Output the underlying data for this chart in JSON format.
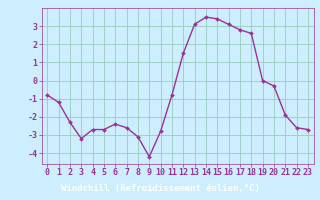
{
  "x": [
    0,
    1,
    2,
    3,
    4,
    5,
    6,
    7,
    8,
    9,
    10,
    11,
    12,
    13,
    14,
    15,
    16,
    17,
    18,
    19,
    20,
    21,
    22,
    23
  ],
  "y": [
    -0.8,
    -1.2,
    -2.3,
    -3.2,
    -2.7,
    -2.7,
    -2.4,
    -2.6,
    -3.1,
    -4.2,
    -2.8,
    -0.8,
    1.5,
    3.1,
    3.5,
    3.4,
    3.1,
    2.8,
    2.6,
    0.0,
    -0.3,
    -1.9,
    -2.6,
    -2.7
  ],
  "line_color": "#993399",
  "marker": "D",
  "markersize": 2,
  "linewidth": 1.0,
  "bg_color": "#cceeff",
  "plot_bg_color": "#cceeff",
  "grid_color": "#99ccbb",
  "tick_color": "#993399",
  "label_color": "#993399",
  "bottom_bar_color": "#9933aa",
  "xlabel": "Windchill (Refroidissement éolien,°C)",
  "ylabel": "",
  "xlim": [
    -0.5,
    23.5
  ],
  "ylim": [
    -4.6,
    4.0
  ],
  "yticks": [
    -4,
    -3,
    -2,
    -1,
    0,
    1,
    2,
    3
  ],
  "xticks": [
    0,
    1,
    2,
    3,
    4,
    5,
    6,
    7,
    8,
    9,
    10,
    11,
    12,
    13,
    14,
    15,
    16,
    17,
    18,
    19,
    20,
    21,
    22,
    23
  ],
  "xlabel_fontsize": 6.5,
  "tick_fontsize": 6.0
}
